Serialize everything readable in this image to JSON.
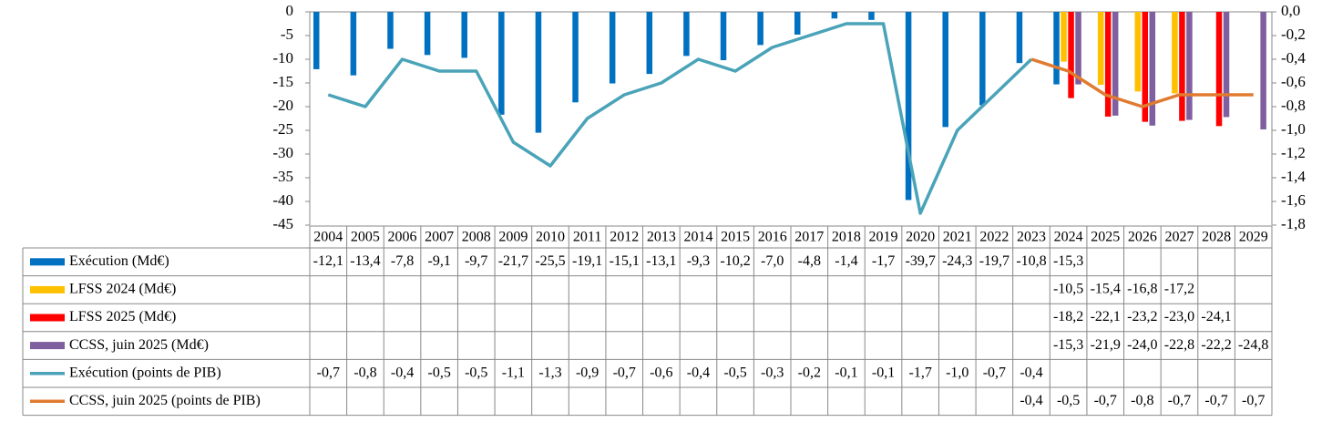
{
  "chart_data": {
    "type": "bar",
    "categories": [
      "2004",
      "2005",
      "2006",
      "2007",
      "2008",
      "2009",
      "2010",
      "2011",
      "2012",
      "2013",
      "2014",
      "2015",
      "2016",
      "2017",
      "2018",
      "2019",
      "2020",
      "2021",
      "2022",
      "2023",
      "2024",
      "2025",
      "2026",
      "2027",
      "2028",
      "2029"
    ],
    "ylim": [
      -45,
      0
    ],
    "yticks": [
      0,
      -5,
      -10,
      -15,
      -20,
      -25,
      -30,
      -35,
      -40,
      -45
    ],
    "y2lim": [
      -1.8,
      0
    ],
    "y2ticks": [
      {
        "value": 0,
        "label": "0,0"
      },
      {
        "value": -0.2,
        "label": "-0,2"
      },
      {
        "value": -0.4,
        "label": "-0,4"
      },
      {
        "value": -0.6,
        "label": "-0,6"
      },
      {
        "value": -0.8,
        "label": "-0,8"
      },
      {
        "value": -1.0,
        "label": "-1,0"
      },
      {
        "value": -1.2,
        "label": "-1,2"
      },
      {
        "value": -1.4,
        "label": "-1,4"
      },
      {
        "value": -1.6,
        "label": "-1,6"
      },
      {
        "value": -1.8,
        "label": "-1,8"
      }
    ],
    "series": [
      {
        "name": "Exécution (Md€)",
        "color": "#0070c0",
        "type": "bar",
        "values": [
          -12.1,
          -13.4,
          -7.8,
          -9.1,
          -9.7,
          -21.7,
          -25.5,
          -19.1,
          -15.1,
          -13.1,
          -9.3,
          -10.2,
          -7.0,
          -4.8,
          -1.4,
          -1.7,
          -39.7,
          -24.3,
          -19.7,
          -10.8,
          -15.3,
          null,
          null,
          null,
          null,
          null
        ],
        "value_labels": [
          "-12,1",
          "-13,4",
          "-7,8",
          "-9,1",
          "-9,7",
          "-21,7",
          "-25,5",
          "-19,1",
          "-15,1",
          "-13,1",
          "-9,3",
          "-10,2",
          "-7,0",
          "-4,8",
          "-1,4",
          "-1,7",
          "-39,7",
          "-24,3",
          "-19,7",
          "-10,8",
          "-15,3",
          null,
          null,
          null,
          null,
          null
        ]
      },
      {
        "name": "LFSS 2024 (Md€)",
        "color": "#ffc000",
        "type": "bar",
        "values": [
          null,
          null,
          null,
          null,
          null,
          null,
          null,
          null,
          null,
          null,
          null,
          null,
          null,
          null,
          null,
          null,
          null,
          null,
          null,
          null,
          -10.5,
          -15.4,
          -16.8,
          -17.2,
          null,
          null
        ],
        "value_labels": [
          null,
          null,
          null,
          null,
          null,
          null,
          null,
          null,
          null,
          null,
          null,
          null,
          null,
          null,
          null,
          null,
          null,
          null,
          null,
          null,
          "-10,5",
          "-15,4",
          "-16,8",
          "-17,2",
          null,
          null
        ]
      },
      {
        "name": "LFSS 2025 (Md€)",
        "color": "#ff0000",
        "type": "bar",
        "values": [
          null,
          null,
          null,
          null,
          null,
          null,
          null,
          null,
          null,
          null,
          null,
          null,
          null,
          null,
          null,
          null,
          null,
          null,
          null,
          null,
          -18.2,
          -22.1,
          -23.2,
          -23.0,
          -24.1,
          null
        ],
        "value_labels": [
          null,
          null,
          null,
          null,
          null,
          null,
          null,
          null,
          null,
          null,
          null,
          null,
          null,
          null,
          null,
          null,
          null,
          null,
          null,
          null,
          "-18,2",
          "-22,1",
          "-23,2",
          "-23,0",
          "-24,1",
          null
        ]
      },
      {
        "name": "CCSS, juin 2025 (Md€)",
        "color": "#7f5f9f",
        "type": "bar",
        "values": [
          null,
          null,
          null,
          null,
          null,
          null,
          null,
          null,
          null,
          null,
          null,
          null,
          null,
          null,
          null,
          null,
          null,
          null,
          null,
          null,
          -15.3,
          -21.9,
          -24.0,
          -22.8,
          -22.2,
          -24.8
        ],
        "value_labels": [
          null,
          null,
          null,
          null,
          null,
          null,
          null,
          null,
          null,
          null,
          null,
          null,
          null,
          null,
          null,
          null,
          null,
          null,
          null,
          null,
          "-15,3",
          "-21,9",
          "-24,0",
          "-22,8",
          "-22,2",
          "-24,8"
        ]
      },
      {
        "name": "Exécution (points de PIB)",
        "color": "#4aa3b8",
        "type": "line",
        "axis": "y2",
        "values": [
          -0.7,
          -0.8,
          -0.4,
          -0.5,
          -0.5,
          -1.1,
          -1.3,
          -0.9,
          -0.7,
          -0.6,
          -0.4,
          -0.5,
          -0.3,
          -0.2,
          -0.1,
          -0.1,
          -1.7,
          -1.0,
          -0.7,
          -0.4,
          null,
          null,
          null,
          null,
          null,
          null
        ],
        "value_labels": [
          "-0,7",
          "-0,8",
          "-0,4",
          "-0,5",
          "-0,5",
          "-1,1",
          "-1,3",
          "-0,9",
          "-0,7",
          "-0,6",
          "-0,4",
          "-0,5",
          "-0,3",
          "-0,2",
          "-0,1",
          "-0,1",
          "-1,7",
          "-1,0",
          "-0,7",
          "-0,4",
          null,
          null,
          null,
          null,
          null,
          null
        ]
      },
      {
        "name": "CCSS, juin 2025 (points de PIB)",
        "color": "#e07b30",
        "type": "line",
        "axis": "y2",
        "values": [
          null,
          null,
          null,
          null,
          null,
          null,
          null,
          null,
          null,
          null,
          null,
          null,
          null,
          null,
          null,
          null,
          null,
          null,
          null,
          -0.4,
          -0.5,
          -0.7,
          -0.8,
          -0.7,
          -0.7,
          -0.7
        ],
        "value_labels": [
          null,
          null,
          null,
          null,
          null,
          null,
          null,
          null,
          null,
          null,
          null,
          null,
          null,
          null,
          null,
          null,
          null,
          null,
          null,
          "-0,4",
          "-0,5",
          "-0,7",
          "-0,8",
          "-0,7",
          "-0,7",
          "-0,7"
        ]
      }
    ]
  }
}
